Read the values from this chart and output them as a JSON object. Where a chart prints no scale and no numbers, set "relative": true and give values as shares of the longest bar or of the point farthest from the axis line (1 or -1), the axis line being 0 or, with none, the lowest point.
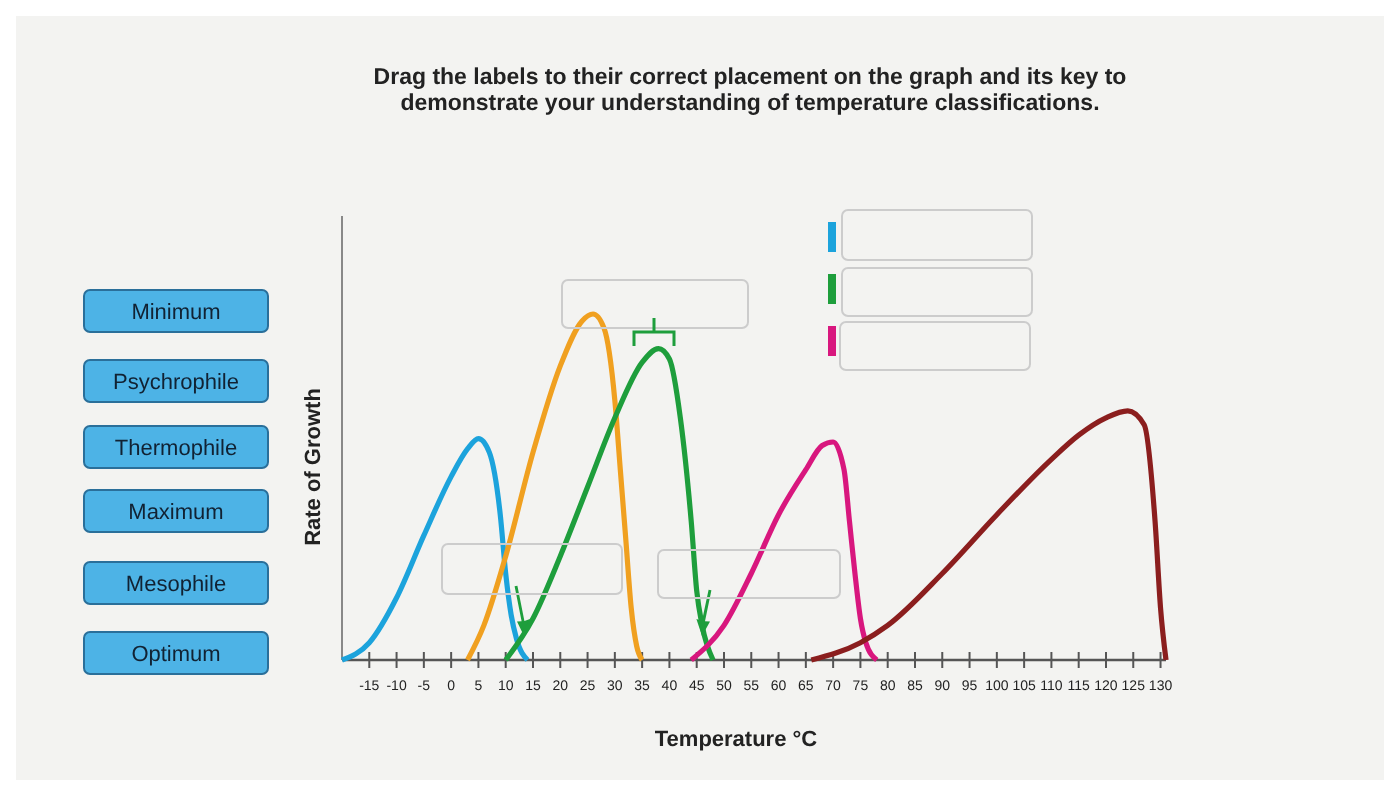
{
  "chart_data": {
    "type": "line",
    "relative": true,
    "title": "Drag the labels to their correct placement on the graph and its key to demonstrate your understanding of temperature classifications.",
    "xlabel": "Temperature °C",
    "ylabel": "Rate of Growth",
    "xlim": [
      -20,
      131
    ],
    "xticks": [
      -15,
      -10,
      -5,
      0,
      5,
      10,
      15,
      20,
      25,
      30,
      35,
      40,
      45,
      50,
      55,
      60,
      65,
      70,
      75,
      80,
      85,
      90,
      95,
      100,
      105,
      110,
      115,
      120,
      125,
      130
    ],
    "grid": false,
    "marker": "none",
    "line_style": "solid",
    "annotations": [
      "Minimum",
      "Psychrophile",
      "Thermophile",
      "Maximum",
      "Mesophile",
      "Optimum"
    ],
    "series": [
      {
        "color": "#1ca3dc",
        "x": [
          -20,
          -15,
          -10,
          -5,
          0,
          3,
          5,
          7,
          9,
          10,
          11,
          12,
          14
        ],
        "values": [
          0,
          0.05,
          0.18,
          0.36,
          0.53,
          0.61,
          0.64,
          0.6,
          0.42,
          0.25,
          0.13,
          0.06,
          0
        ]
      },
      {
        "color": "#f0a020",
        "x": [
          3,
          6,
          10,
          15,
          20,
          24,
          26,
          28,
          30,
          31,
          32,
          33,
          34,
          35
        ],
        "values": [
          0,
          0.1,
          0.3,
          0.6,
          0.85,
          0.98,
          1,
          0.96,
          0.75,
          0.55,
          0.35,
          0.15,
          0.04,
          0
        ]
      },
      {
        "color": "#1e9e3c",
        "x": [
          10,
          15,
          20,
          25,
          30,
          35,
          38,
          40,
          42,
          44,
          45,
          46,
          48
        ],
        "values": [
          0,
          0.12,
          0.3,
          0.5,
          0.7,
          0.86,
          0.9,
          0.87,
          0.7,
          0.4,
          0.2,
          0.1,
          0
        ]
      },
      {
        "color": "#d8177e",
        "x": [
          44,
          50,
          55,
          60,
          65,
          68,
          70,
          72,
          73,
          74,
          75,
          76,
          78
        ],
        "values": [
          0,
          0.1,
          0.25,
          0.42,
          0.55,
          0.62,
          0.63,
          0.55,
          0.4,
          0.25,
          0.12,
          0.05,
          0
        ]
      },
      {
        "color": "#8b1e1e",
        "x": [
          66,
          75,
          80,
          90,
          100,
          110,
          115,
          120,
          124,
          127,
          129,
          130,
          131
        ],
        "values": [
          0,
          0.05,
          0.1,
          0.25,
          0.42,
          0.58,
          0.65,
          0.7,
          0.72,
          0.68,
          0.4,
          0.15,
          0
        ]
      }
    ]
  }
}
